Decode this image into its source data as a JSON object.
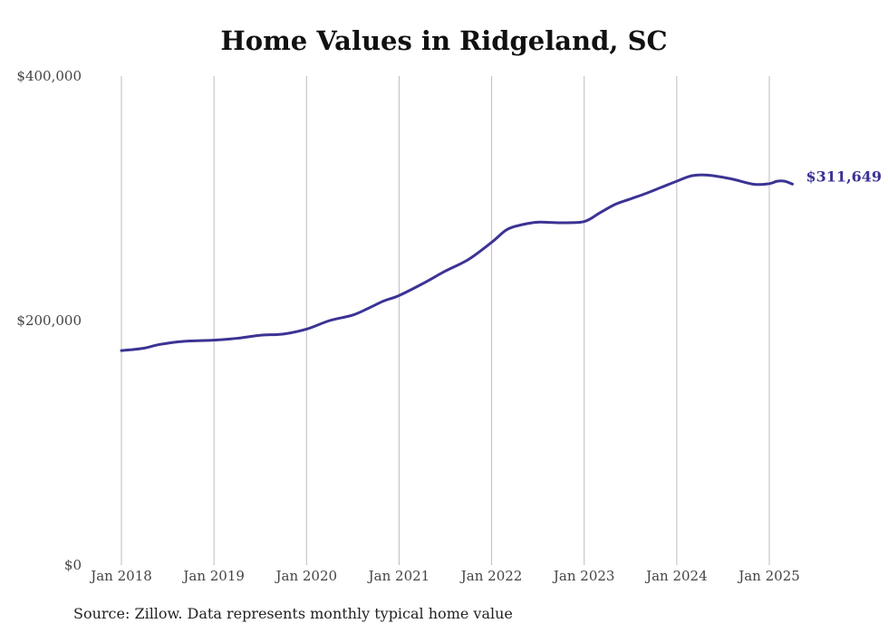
{
  "chart_data": {
    "type": "line",
    "title": "Home Values in Ridgeland, SC",
    "xlabel": "",
    "ylabel": "",
    "ylim": [
      0,
      400000
    ],
    "y_ticks": [
      "$0",
      "$200,000",
      "$400,000"
    ],
    "y_tick_values": [
      0,
      200000,
      400000
    ],
    "x_ticks": [
      "Jan 2018",
      "Jan 2019",
      "Jan 2020",
      "Jan 2021",
      "Jan 2022",
      "Jan 2023",
      "Jan 2024",
      "Jan 2025"
    ],
    "x_tick_dates": [
      "2018-01",
      "2019-01",
      "2020-01",
      "2021-01",
      "2022-01",
      "2023-01",
      "2024-01",
      "2025-01"
    ],
    "grid": "vertical",
    "series": [
      {
        "color": "#3b3394",
        "end_label": "$311,649",
        "points": [
          [
            "2018-01",
            175500
          ],
          [
            "2018-02",
            176000
          ],
          [
            "2018-04",
            177500
          ],
          [
            "2018-06",
            180500
          ],
          [
            "2018-09",
            183000
          ],
          [
            "2019-01",
            184000
          ],
          [
            "2019-04",
            185500
          ],
          [
            "2019-07",
            188000
          ],
          [
            "2019-10",
            189000
          ],
          [
            "2020-01",
            193000
          ],
          [
            "2020-04",
            200000
          ],
          [
            "2020-07",
            204500
          ],
          [
            "2020-09",
            210000
          ],
          [
            "2020-11",
            216000
          ],
          [
            "2021-01",
            220500
          ],
          [
            "2021-04",
            230000
          ],
          [
            "2021-07",
            240500
          ],
          [
            "2021-10",
            250000
          ],
          [
            "2022-01",
            264000
          ],
          [
            "2022-03",
            274500
          ],
          [
            "2022-05",
            278500
          ],
          [
            "2022-07",
            280500
          ],
          [
            "2022-10",
            280000
          ],
          [
            "2023-01",
            281000
          ],
          [
            "2023-03",
            288000
          ],
          [
            "2023-05",
            295000
          ],
          [
            "2023-07",
            299500
          ],
          [
            "2023-09",
            304000
          ],
          [
            "2023-11",
            309000
          ],
          [
            "2024-01",
            314000
          ],
          [
            "2024-03",
            318500
          ],
          [
            "2024-05",
            319000
          ],
          [
            "2024-08",
            316000
          ],
          [
            "2024-11",
            311500
          ],
          [
            "2025-01",
            312000
          ],
          [
            "2025-02",
            314000
          ],
          [
            "2025-03",
            314000
          ],
          [
            "2025-04",
            311649
          ]
        ]
      }
    ],
    "source": "Source: Zillow. Data represents monthly typical home value"
  }
}
